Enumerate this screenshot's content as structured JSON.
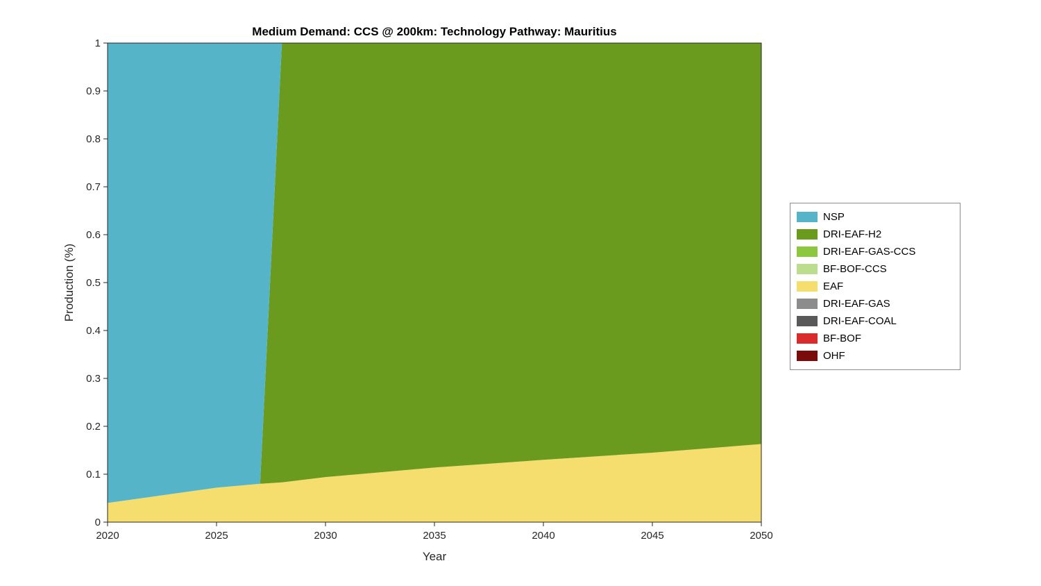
{
  "title": "Medium Demand: CCS @ 200km: Technology Pathway: Mauritius",
  "axes": {
    "xlabel": "Year",
    "ylabel": "Production (%)",
    "x_range": [
      2020,
      2050
    ],
    "y_range": [
      0,
      1
    ],
    "x_ticks": [
      2020,
      2025,
      2030,
      2035,
      2040,
      2045,
      2050
    ],
    "y_ticks": [
      0,
      0.1,
      0.2,
      0.3,
      0.4,
      0.5,
      0.6,
      0.7,
      0.8,
      0.9,
      1
    ],
    "axis_color": "#262626"
  },
  "legend": {
    "items": [
      {
        "label": "NSP",
        "color": "#56b4c8"
      },
      {
        "label": "DRI-EAF-H2",
        "color": "#6a9b1e"
      },
      {
        "label": "DRI-EAF-GAS-CCS",
        "color": "#8dc63f"
      },
      {
        "label": "BF-BOF-CCS",
        "color": "#bcdc8e"
      },
      {
        "label": "EAF",
        "color": "#f5dd6e"
      },
      {
        "label": "DRI-EAF-GAS",
        "color": "#8c8c8c"
      },
      {
        "label": "DRI-EAF-COAL",
        "color": "#595959"
      },
      {
        "label": "BF-BOF",
        "color": "#d92b2b"
      },
      {
        "label": "OHF",
        "color": "#7a0c0c"
      }
    ]
  },
  "chart_data": {
    "type": "area",
    "stacked": true,
    "title": "Medium Demand: CCS @ 200km: Technology Pathway: Mauritius",
    "xlabel": "Year",
    "ylabel": "Production (%)",
    "xlim": [
      2020,
      2050
    ],
    "ylim": [
      0,
      1
    ],
    "grid": false,
    "legend_position": "right-outside",
    "x": [
      2020,
      2025,
      2027,
      2028,
      2030,
      2035,
      2040,
      2045,
      2050
    ],
    "stack_order_bottom_to_top": [
      "OHF",
      "BF-BOF",
      "DRI-EAF-COAL",
      "DRI-EAF-GAS",
      "EAF",
      "BF-BOF-CCS",
      "DRI-EAF-GAS-CCS",
      "DRI-EAF-H2",
      "NSP"
    ],
    "series": [
      {
        "name": "NSP",
        "values": [
          0.96,
          0.928,
          0.92,
          0,
          0,
          0,
          0,
          0,
          0
        ]
      },
      {
        "name": "DRI-EAF-H2",
        "values": [
          0,
          0,
          0,
          0.917,
          0.906,
          0.886,
          0.87,
          0.855,
          0.837
        ]
      },
      {
        "name": "DRI-EAF-GAS-CCS",
        "values": [
          0,
          0,
          0,
          0,
          0,
          0,
          0,
          0,
          0
        ]
      },
      {
        "name": "BF-BOF-CCS",
        "values": [
          0,
          0,
          0,
          0,
          0,
          0,
          0,
          0,
          0
        ]
      },
      {
        "name": "EAF",
        "values": [
          0.04,
          0.072,
          0.08,
          0.083,
          0.094,
          0.114,
          0.13,
          0.145,
          0.163
        ]
      },
      {
        "name": "DRI-EAF-GAS",
        "values": [
          0,
          0,
          0,
          0,
          0,
          0,
          0,
          0,
          0
        ]
      },
      {
        "name": "DRI-EAF-COAL",
        "values": [
          0,
          0,
          0,
          0,
          0,
          0,
          0,
          0,
          0
        ]
      },
      {
        "name": "BF-BOF",
        "values": [
          0,
          0,
          0,
          0,
          0,
          0,
          0,
          0,
          0
        ]
      },
      {
        "name": "OHF",
        "values": [
          0,
          0,
          0,
          0,
          0,
          0,
          0,
          0,
          0
        ]
      }
    ]
  }
}
